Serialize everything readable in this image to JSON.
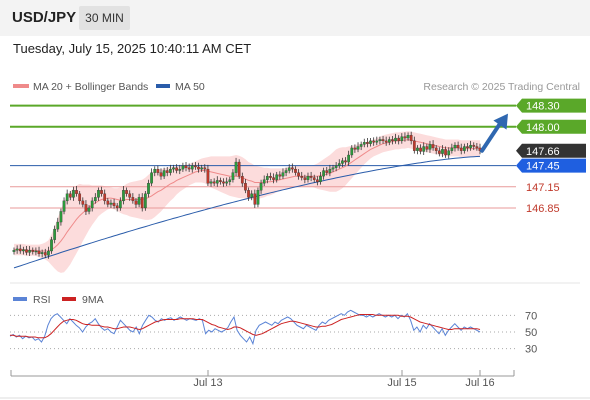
{
  "header": {
    "symbol": "USD/JPY",
    "timeframe": "30 MIN",
    "timestamp": "Tuesday, July 15, 2025 10:40:11 AM CET"
  },
  "legend": {
    "ma20_label": "MA 20 + Bollinger Bands",
    "ma50_label": "MA 50",
    "credit": "Research © 2025 Trading Central",
    "rsi_label": "RSI",
    "ma9_label": "9MA"
  },
  "colors": {
    "resistance_line": "#5aa829",
    "support_line": "#e89a9a",
    "ma50": "#2a5caa",
    "ma20": "#ef8a8a",
    "bollinger_fill": "#fcdcdc",
    "candle_up": "#2c9a3c",
    "candle_down": "#c0392b",
    "arrow": "#2f67b0",
    "current_price_bg": "#333333",
    "rsi_line": "#5b84d6",
    "rsi_ma_line": "#cc2222"
  },
  "chart_data": [
    {
      "type": "candlestick",
      "symbol": "USD/JPY",
      "interval": "30 MIN",
      "ylim": [
        145.9,
        148.45
      ],
      "x_ticks": [
        "Jul 13",
        "Jul 15",
        "Jul 16"
      ],
      "price_levels": [
        {
          "value": 148.3,
          "label": "148.30",
          "kind": "resistance"
        },
        {
          "value": 148.0,
          "label": "148.00",
          "kind": "resistance"
        },
        {
          "value": 147.66,
          "label": "147.66",
          "kind": "current"
        },
        {
          "value": 147.45,
          "label": "147.45",
          "kind": "pivot"
        },
        {
          "value": 147.15,
          "label": "147.15",
          "kind": "support"
        },
        {
          "value": 146.85,
          "label": "146.85",
          "kind": "support"
        }
      ],
      "path_close": [
        146.25,
        146.27,
        146.24,
        146.26,
        146.22,
        146.25,
        146.23,
        146.24,
        146.2,
        146.22,
        146.18,
        146.24,
        146.4,
        146.55,
        146.65,
        146.8,
        146.95,
        147.05,
        147.0,
        147.1,
        147.05,
        146.95,
        146.9,
        146.8,
        146.85,
        146.95,
        147.0,
        147.1,
        147.05,
        146.95,
        146.9,
        146.92,
        146.88,
        146.85,
        146.95,
        147.1,
        147.05,
        147.0,
        146.95,
        146.9,
        147.0,
        146.85,
        147.05,
        147.2,
        147.35,
        147.4,
        147.35,
        147.3,
        147.38,
        147.35,
        147.4,
        147.42,
        147.38,
        147.4,
        147.45,
        147.42,
        147.4,
        147.45,
        147.43,
        147.4,
        147.42,
        147.4,
        147.2,
        147.22,
        147.2,
        147.24,
        147.22,
        147.2,
        147.22,
        147.25,
        147.35,
        147.5,
        147.3,
        147.2,
        147.1,
        147.0,
        147.05,
        146.9,
        147.1,
        147.2,
        147.25,
        147.3,
        147.28,
        147.25,
        147.32,
        147.3,
        147.35,
        147.38,
        147.42,
        147.4,
        147.35,
        147.3,
        147.28,
        147.25,
        147.3,
        147.28,
        147.25,
        147.22,
        147.3,
        147.38,
        147.35,
        147.4,
        147.42,
        147.45,
        147.48,
        147.52,
        147.5,
        147.6,
        147.7,
        147.68,
        147.72,
        147.75,
        147.78,
        147.76,
        147.8,
        147.78,
        147.8,
        147.82,
        147.8,
        147.78,
        147.82,
        147.8,
        147.84,
        147.8,
        147.86,
        147.84,
        147.88,
        147.8,
        147.66,
        147.7,
        147.65,
        147.72,
        147.68,
        147.75,
        147.7,
        147.66,
        147.62,
        147.68,
        147.6,
        147.66,
        147.7,
        147.74,
        147.7,
        147.66,
        147.72,
        147.7,
        147.74,
        147.72,
        147.7,
        147.66
      ],
      "ma20": [
        146.26,
        146.26,
        146.26,
        146.26,
        146.25,
        146.25,
        146.25,
        146.25,
        146.24,
        146.24,
        146.24,
        146.24,
        146.26,
        146.29,
        146.33,
        146.38,
        146.44,
        146.51,
        146.57,
        146.63,
        146.69,
        146.74,
        146.78,
        146.82,
        146.86,
        146.89,
        146.92,
        146.95,
        146.97,
        146.98,
        146.99,
        146.99,
        146.98,
        146.97,
        146.96,
        146.96,
        146.97,
        146.97,
        146.97,
        146.97,
        146.97,
        146.97,
        146.98,
        147.0,
        147.02,
        147.05,
        147.08,
        147.1,
        147.13,
        147.16,
        147.19,
        147.21,
        147.24,
        147.26,
        147.28,
        147.3,
        147.32,
        147.34,
        147.36,
        147.37,
        147.38,
        147.38,
        147.37,
        147.36,
        147.35,
        147.34,
        147.33,
        147.32,
        147.31,
        147.3,
        147.3,
        147.3,
        147.29,
        147.28,
        147.26,
        147.24,
        147.23,
        147.21,
        147.21,
        147.21,
        147.21,
        147.22,
        147.22,
        147.23,
        147.24,
        147.25,
        147.26,
        147.27,
        147.28,
        147.29,
        147.3,
        147.3,
        147.3,
        147.3,
        147.3,
        147.3,
        147.3,
        147.3,
        147.31,
        147.32,
        147.33,
        147.34,
        147.36,
        147.38,
        147.4,
        147.42,
        147.44,
        147.47,
        147.5,
        147.53,
        147.56,
        147.59,
        147.62,
        147.65,
        147.68,
        147.7,
        147.72,
        147.74,
        147.76,
        147.77,
        147.78,
        147.79,
        147.8,
        147.8,
        147.81,
        147.81,
        147.82,
        147.81,
        147.8,
        147.79,
        147.78,
        147.77,
        147.76,
        147.75,
        147.74,
        147.73,
        147.72,
        147.71,
        147.7,
        147.7,
        147.7,
        147.7,
        147.7,
        147.69,
        147.69,
        147.69,
        147.69,
        147.69,
        147.69,
        147.69
      ],
      "band_width": [
        0.08,
        0.08,
        0.08,
        0.08,
        0.08,
        0.08,
        0.08,
        0.08,
        0.09,
        0.1,
        0.12,
        0.15,
        0.22,
        0.3,
        0.38,
        0.45,
        0.5,
        0.52,
        0.52,
        0.5,
        0.48,
        0.45,
        0.4,
        0.36,
        0.32,
        0.28,
        0.25,
        0.22,
        0.2,
        0.18,
        0.16,
        0.15,
        0.15,
        0.16,
        0.18,
        0.2,
        0.22,
        0.24,
        0.25,
        0.26,
        0.27,
        0.28,
        0.3,
        0.32,
        0.33,
        0.33,
        0.32,
        0.3,
        0.28,
        0.26,
        0.24,
        0.22,
        0.2,
        0.18,
        0.17,
        0.16,
        0.15,
        0.15,
        0.15,
        0.16,
        0.17,
        0.18,
        0.2,
        0.22,
        0.23,
        0.24,
        0.25,
        0.26,
        0.27,
        0.28,
        0.29,
        0.3,
        0.3,
        0.29,
        0.28,
        0.26,
        0.25,
        0.24,
        0.23,
        0.22,
        0.21,
        0.2,
        0.19,
        0.18,
        0.17,
        0.16,
        0.15,
        0.15,
        0.15,
        0.15,
        0.15,
        0.15,
        0.15,
        0.15,
        0.15,
        0.15,
        0.16,
        0.18,
        0.2,
        0.22,
        0.24,
        0.26,
        0.28,
        0.3,
        0.3,
        0.29,
        0.27,
        0.25,
        0.23,
        0.21,
        0.19,
        0.17,
        0.15,
        0.14,
        0.13,
        0.12,
        0.12,
        0.12,
        0.12,
        0.12,
        0.12,
        0.12,
        0.12,
        0.12,
        0.12,
        0.12,
        0.12,
        0.12,
        0.12,
        0.12,
        0.12,
        0.12,
        0.12,
        0.12,
        0.12,
        0.12,
        0.12,
        0.12,
        0.12,
        0.12,
        0.12,
        0.12,
        0.12,
        0.12,
        0.12,
        0.12,
        0.12,
        0.12,
        0.12,
        0.12,
        0.12,
        0.12
      ],
      "ma50_start": 146.0,
      "ma50_end": 147.58
    },
    {
      "type": "line",
      "name": "RSI",
      "y_ticks": [
        70,
        50,
        30
      ],
      "ylim": [
        20,
        80
      ],
      "series": [
        {
          "name": "RSI",
          "values": [
            45,
            47,
            44,
            46,
            42,
            45,
            43,
            44,
            40,
            42,
            38,
            45,
            58,
            66,
            70,
            72,
            68,
            64,
            60,
            66,
            62,
            58,
            55,
            50,
            56,
            60,
            62,
            66,
            60,
            55,
            52,
            54,
            50,
            48,
            56,
            64,
            60,
            56,
            52,
            50,
            56,
            48,
            58,
            64,
            70,
            68,
            64,
            62,
            66,
            64,
            66,
            67,
            64,
            66,
            68,
            66,
            64,
            66,
            65,
            64,
            66,
            64,
            48,
            52,
            50,
            54,
            52,
            50,
            52,
            55,
            62,
            68,
            52,
            46,
            42,
            38,
            44,
            36,
            52,
            58,
            60,
            62,
            60,
            58,
            62,
            60,
            64,
            66,
            68,
            66,
            62,
            58,
            56,
            54,
            58,
            56,
            54,
            52,
            58,
            62,
            60,
            64,
            66,
            68,
            70,
            72,
            70,
            74,
            76,
            74,
            72,
            70,
            70,
            68,
            70,
            68,
            70,
            72,
            70,
            68,
            70,
            68,
            70,
            66,
            70,
            68,
            72,
            64,
            52,
            56,
            50,
            58,
            54,
            60,
            56,
            52,
            48,
            54,
            46,
            52,
            56,
            60,
            56,
            52,
            56,
            54,
            56,
            54,
            52,
            50
          ]
        },
        {
          "name": "9MA",
          "values": [
            46,
            46,
            45,
            45,
            45,
            45,
            44,
            44,
            44,
            43,
            43,
            43,
            45,
            48,
            52,
            56,
            60,
            63,
            64,
            65,
            65,
            64,
            62,
            60,
            59,
            59,
            58,
            58,
            58,
            57,
            56,
            56,
            55,
            54,
            54,
            55,
            56,
            56,
            56,
            55,
            54,
            53,
            54,
            56,
            58,
            60,
            62,
            63,
            64,
            65,
            65,
            65,
            65,
            65,
            66,
            66,
            66,
            66,
            66,
            65,
            65,
            65,
            63,
            61,
            59,
            58,
            56,
            55,
            54,
            53,
            54,
            56,
            56,
            55,
            53,
            51,
            49,
            47,
            46,
            47,
            48,
            50,
            52,
            54,
            56,
            58,
            60,
            61,
            62,
            63,
            63,
            62,
            61,
            60,
            59,
            58,
            57,
            56,
            56,
            57,
            57,
            58,
            59,
            61,
            63,
            65,
            66,
            67,
            68,
            69,
            70,
            71,
            71,
            71,
            71,
            71,
            70,
            70,
            70,
            70,
            70,
            70,
            70,
            70,
            69,
            69,
            69,
            68,
            66,
            64,
            62,
            61,
            60,
            59,
            58,
            57,
            56,
            55,
            54,
            53,
            53,
            54,
            54,
            54,
            54,
            54,
            54,
            54,
            54,
            53
          ]
        }
      ]
    }
  ]
}
